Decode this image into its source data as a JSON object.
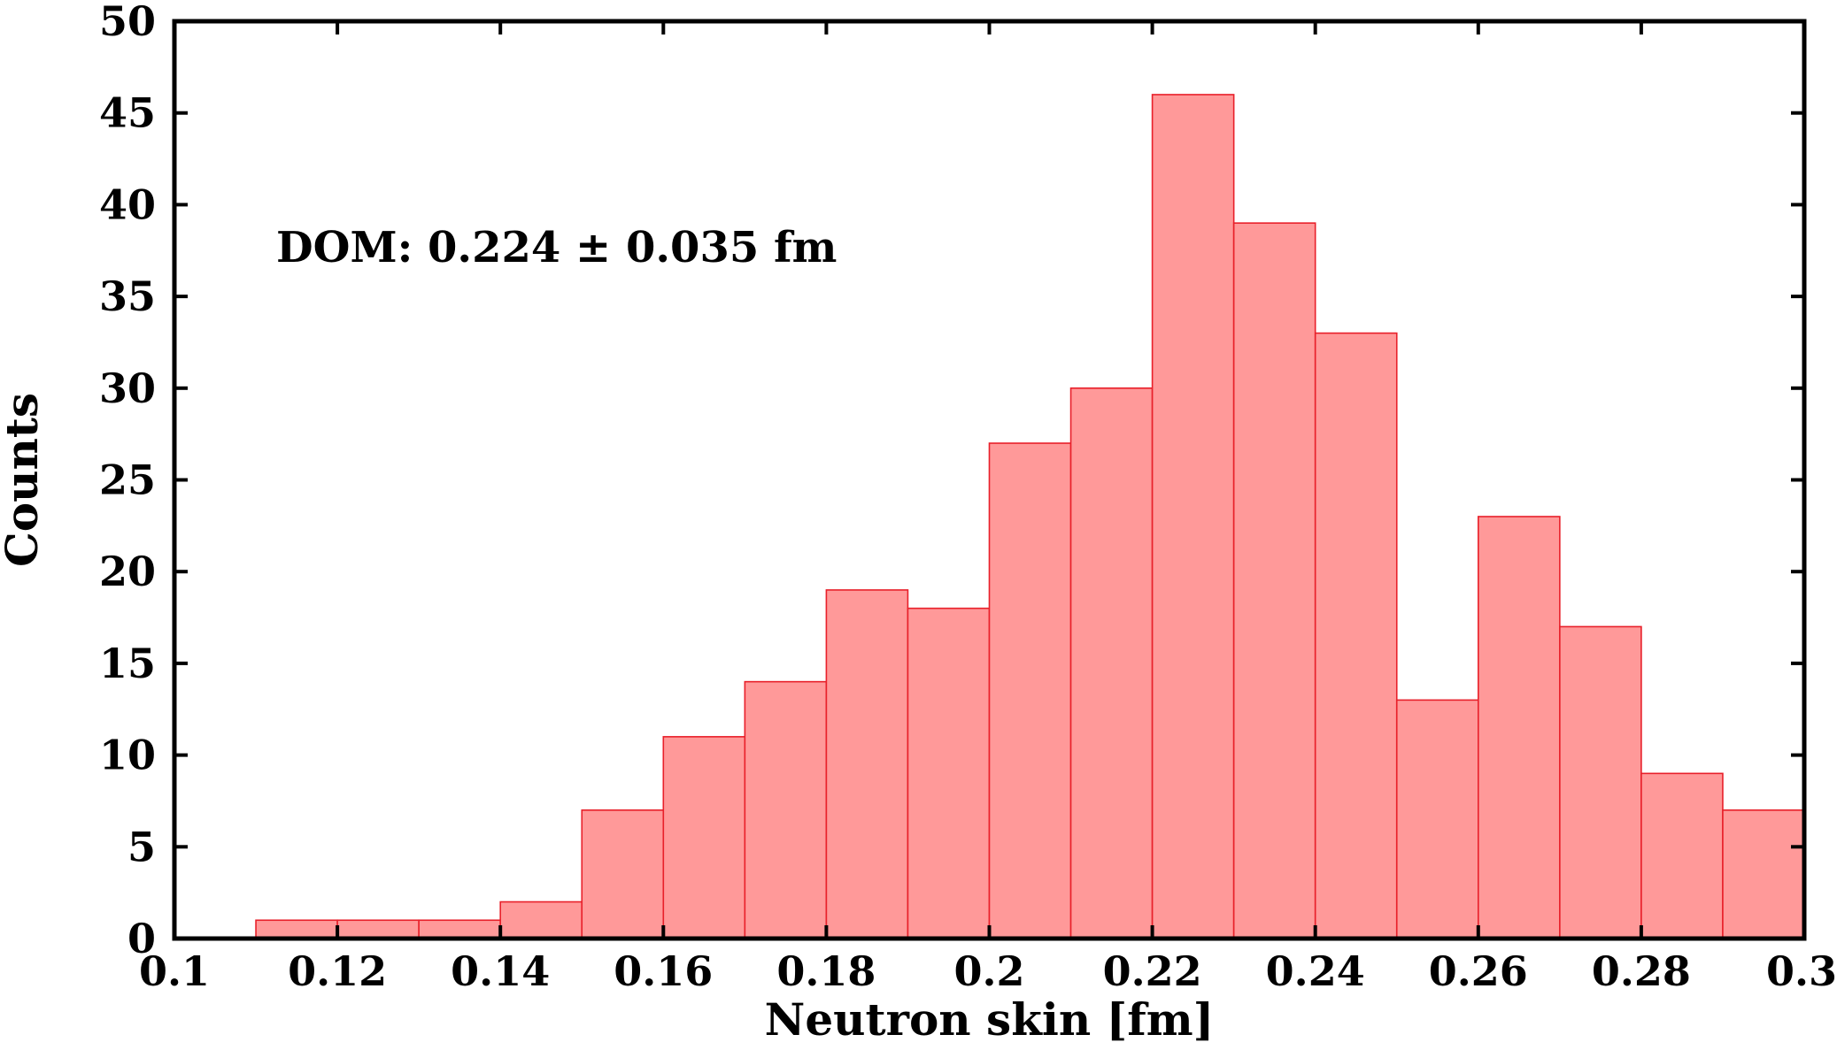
{
  "chart_data": {
    "type": "bar",
    "bins": [
      [
        0.11,
        0.12
      ],
      [
        0.12,
        0.13
      ],
      [
        0.13,
        0.14
      ],
      [
        0.14,
        0.15
      ],
      [
        0.15,
        0.16
      ],
      [
        0.16,
        0.17
      ],
      [
        0.17,
        0.18
      ],
      [
        0.18,
        0.19
      ],
      [
        0.19,
        0.2
      ],
      [
        0.2,
        0.21
      ],
      [
        0.21,
        0.22
      ],
      [
        0.22,
        0.23
      ],
      [
        0.23,
        0.24
      ],
      [
        0.24,
        0.25
      ],
      [
        0.25,
        0.26
      ],
      [
        0.26,
        0.27
      ],
      [
        0.27,
        0.28
      ],
      [
        0.28,
        0.29
      ],
      [
        0.29,
        0.3
      ]
    ],
    "values": [
      1,
      1,
      1,
      2,
      7,
      11,
      14,
      19,
      18,
      27,
      30,
      46,
      39,
      33,
      13,
      23,
      17,
      9,
      7
    ],
    "xlabel": "Neutron skin [fm]",
    "ylabel": "Counts",
    "xlim": [
      0.1,
      0.3
    ],
    "ylim": [
      0,
      50
    ],
    "x_ticks": [
      "0.1",
      "0.12",
      "0.14",
      "0.16",
      "0.18",
      "0.2",
      "0.22",
      "0.24",
      "0.26",
      "0.28",
      "0.3"
    ],
    "x_tick_values": [
      0.1,
      0.12,
      0.14,
      0.16,
      0.18,
      0.2,
      0.22,
      0.24,
      0.26,
      0.28,
      0.3
    ],
    "y_ticks": [
      "0",
      "5",
      "10",
      "15",
      "20",
      "25",
      "30",
      "35",
      "40",
      "45",
      "50"
    ],
    "y_tick_values": [
      0,
      5,
      10,
      15,
      20,
      25,
      30,
      35,
      40,
      45,
      50
    ],
    "annotation": "DOM: 0.224 ± 0.035 fm",
    "grid": false,
    "bar_fill": "#ff9999",
    "bar_stroke": "#e8202a"
  }
}
